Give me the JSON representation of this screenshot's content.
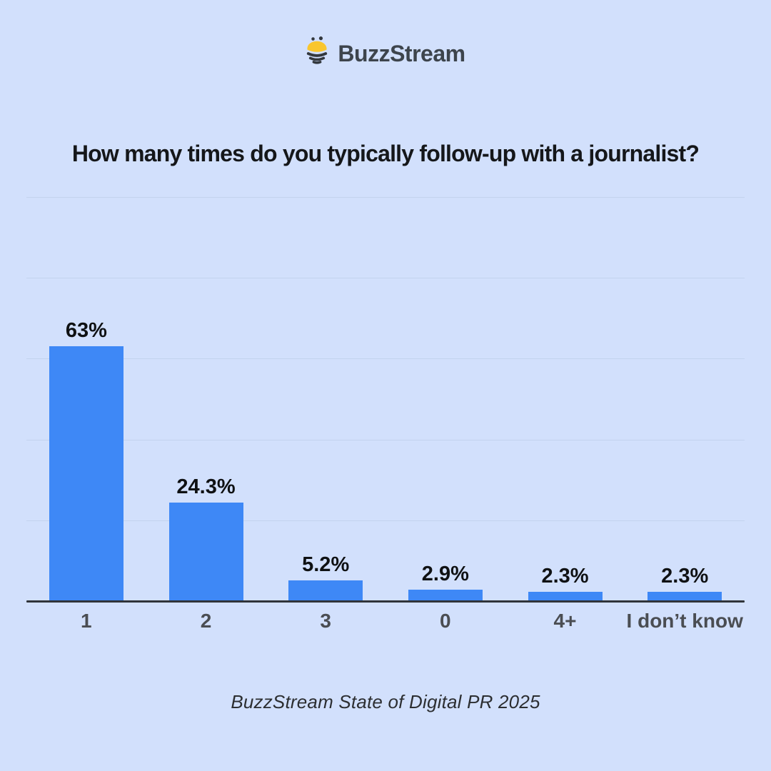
{
  "logo": {
    "brand": "BuzzStream",
    "icon": "bee-icon"
  },
  "title": {
    "text": "How many times do you typically follow-up with a journalist?"
  },
  "chart_data": {
    "type": "bar",
    "title": "How many times do you typically follow-up with a journalist?",
    "categories": [
      "1",
      "2",
      "3",
      "0",
      "4+",
      "I don’t know"
    ],
    "values": [
      63,
      24.3,
      5.2,
      2.9,
      2.3,
      2.3
    ],
    "value_labels": [
      "63%",
      "24.3%",
      "5.2%",
      "2.9%",
      "2.3%",
      "2.3%"
    ],
    "xlabel": "",
    "ylabel": "",
    "ylim": [
      0,
      100
    ],
    "gridlines_pct": [
      20,
      40,
      60,
      80,
      100
    ],
    "grid": "horizontal-only",
    "y_tick_labels_shown": false,
    "legend": "none",
    "bar_color": "#3e88f6",
    "axis_line_color": "#30343a",
    "gridline_color": "#c3d3ee",
    "value_label_color": "#0f1113",
    "category_label_color": "#4a4d52",
    "background_color": "#d2e0fc"
  },
  "footer": {
    "text": "BuzzStream State of Digital PR 2025"
  },
  "theme": {
    "bg": "#d2e0fc",
    "bar": "#3e88f6",
    "grid": "#c3d3ee",
    "axis": "#30343a",
    "title": "#15171a",
    "value": "#0f1113",
    "xlabel": "#4a4d52",
    "footer": "#2c2e31",
    "logo_text": "#3d444c",
    "bee_yellow": "#f9c62e",
    "bee_dark": "#33383e"
  }
}
